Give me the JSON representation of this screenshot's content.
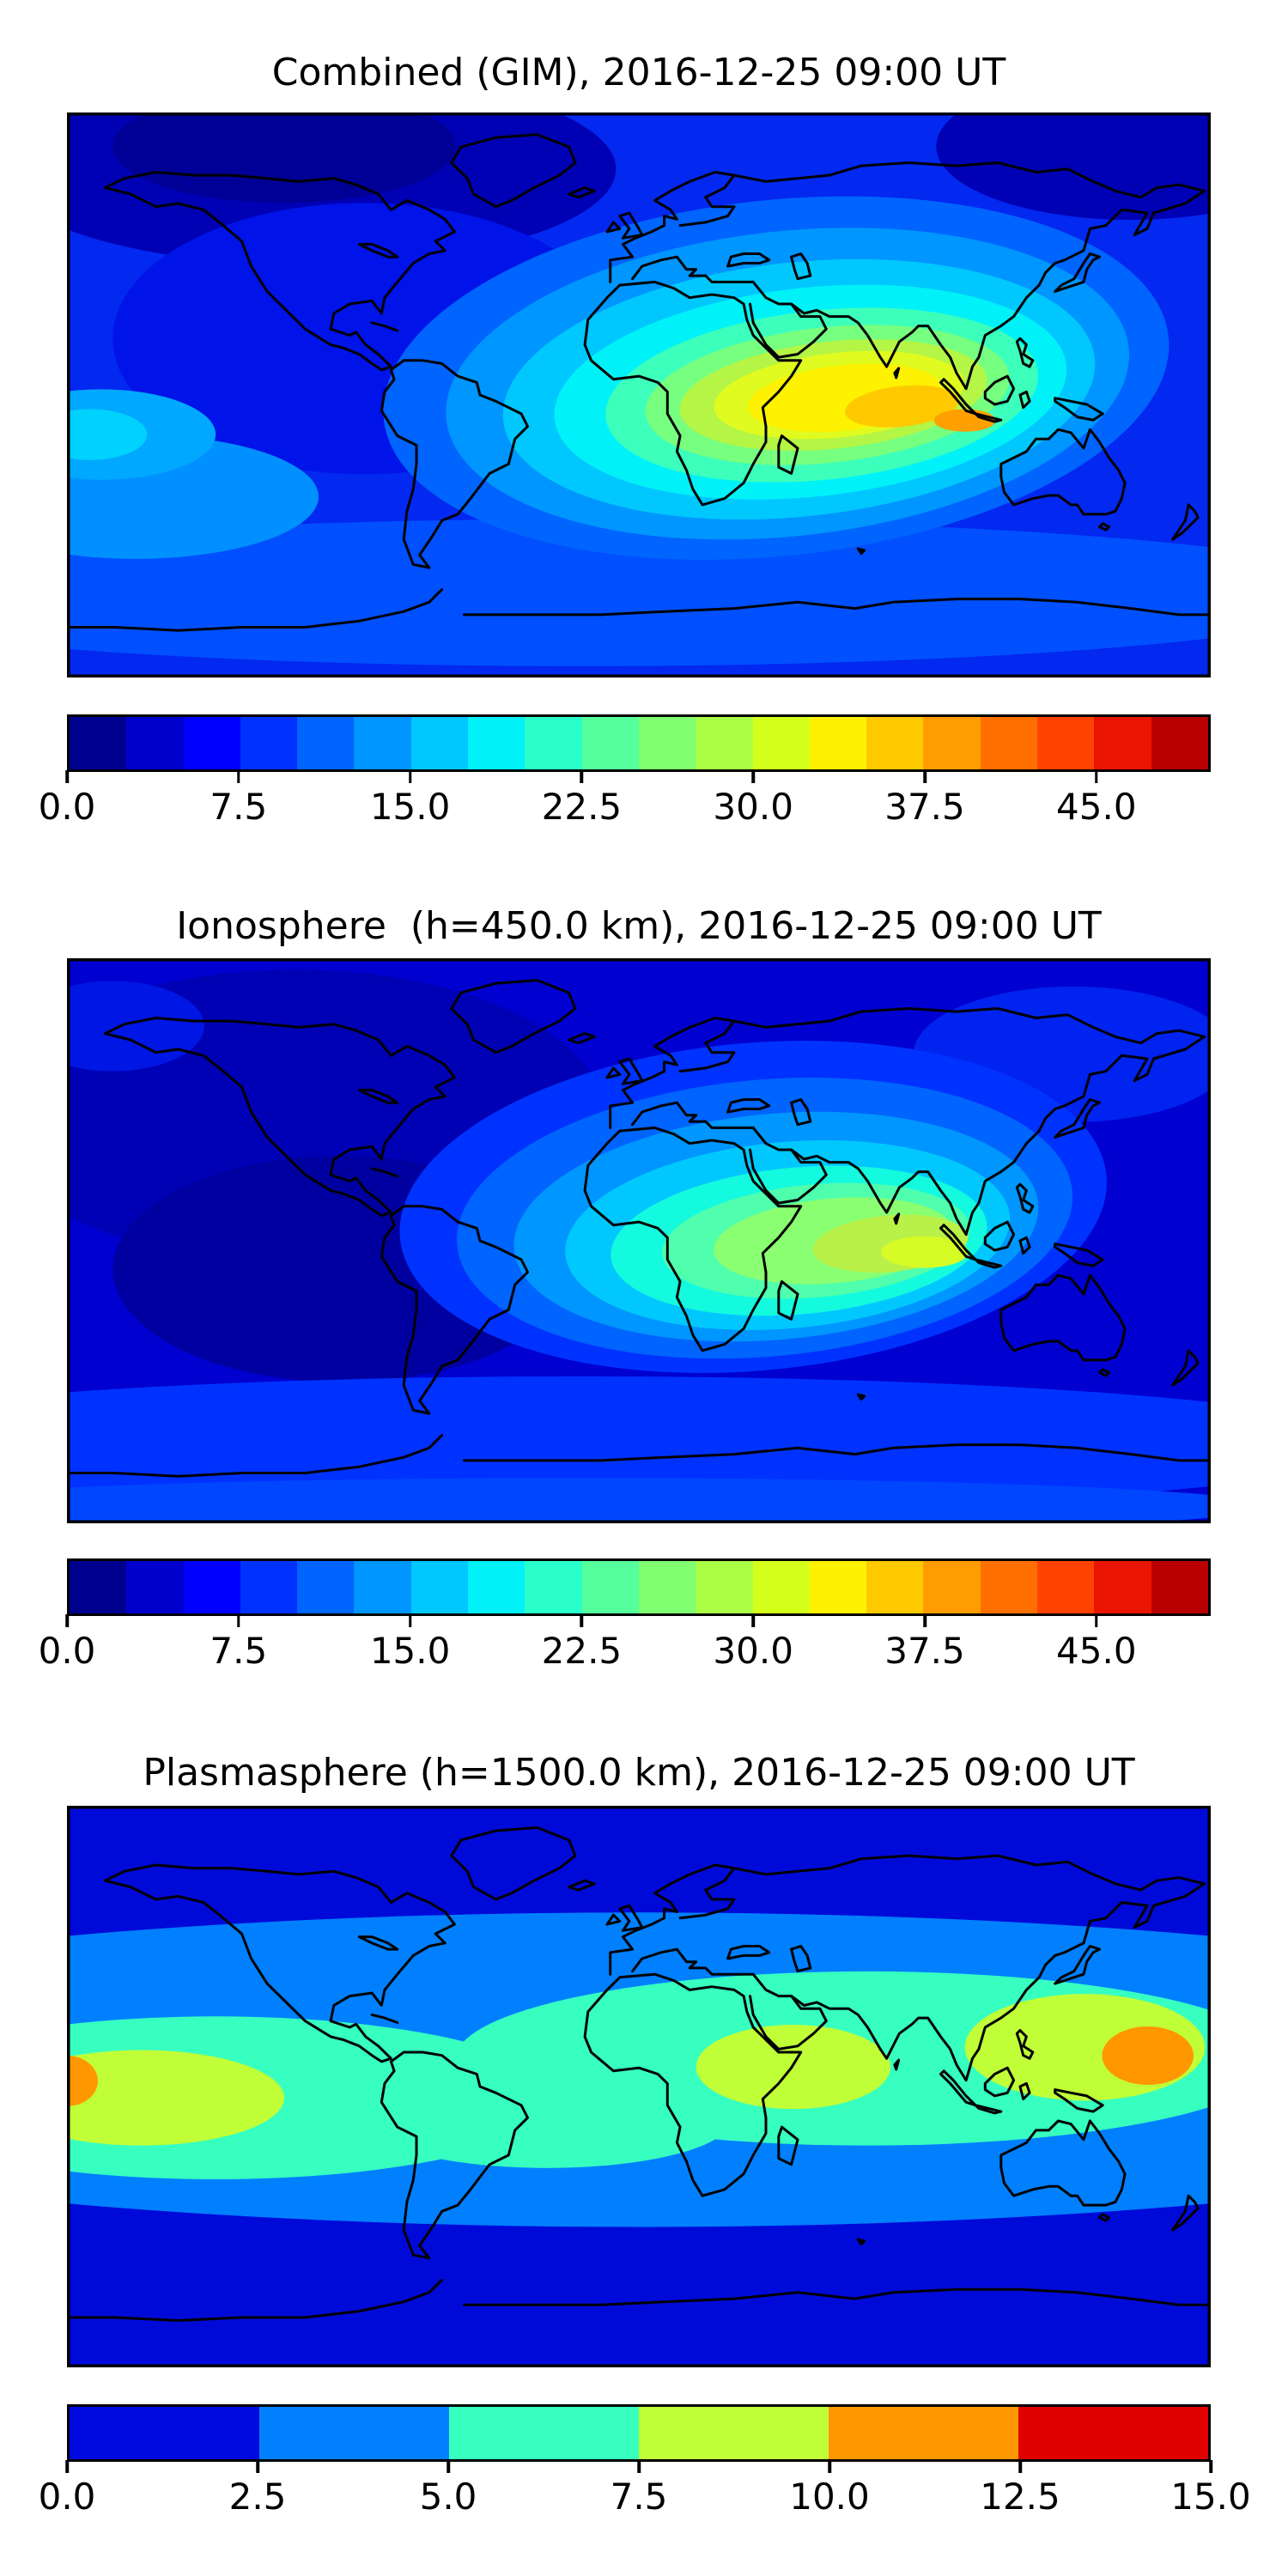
{
  "figure": {
    "background_color": "#ffffff",
    "frame_color": "#000000",
    "coastline_color": "#000000"
  },
  "chart_data": [
    {
      "type": "heatmap",
      "id": "combined",
      "title": "Combined (GIM), 2016-12-25 09:00 UT",
      "layer": "Combined (GIM)",
      "datetime": "2016-12-25 09:00 UT",
      "projection": "equirectangular world map, lon -180..180, lat -90..90, no axis tick labels",
      "grid": "off",
      "colorbar": {
        "orientation": "horizontal",
        "min": 0,
        "max": 50,
        "n_segments": 20,
        "tick_values": [
          0,
          7.5,
          15,
          22.5,
          30,
          37.5,
          45
        ],
        "tick_labels": [
          "0.0",
          "7.5",
          "15.0",
          "22.5",
          "30.0",
          "37.5",
          "45.0"
        ],
        "segment_colors": [
          "#00008f",
          "#0000cd",
          "#0000ff",
          "#0032ff",
          "#0064ff",
          "#0096ff",
          "#00c8ff",
          "#00f2f8",
          "#2affc9",
          "#55ff9b",
          "#80ff70",
          "#aaff46",
          "#d4ff1b",
          "#fff200",
          "#ffc900",
          "#ff9c00",
          "#ff6f00",
          "#ff4200",
          "#ea1500",
          "#b80000"
        ]
      },
      "field_summary": {
        "peak_value_approx": 35,
        "peak_location": {
          "lon_deg": 103,
          "lat_deg": -8
        },
        "secondary_high": "yellow lobe (~30) over central/east Africa around lon 25E lat -5",
        "low_value_approx": 2.5,
        "low_regions": "northern high latitudes over Canada/Greenland and NE Siberia",
        "description": "equatorial ionization anomaly centered over Indian Ocean / Maritime Continent, cyan mid-latitude band in southern Pacific"
      },
      "field_background": "#0328f0",
      "field_blobs": [
        {
          "cx": 0.21,
          "cy": 0.1,
          "rx": 0.27,
          "ry": 0.17,
          "color": "#0000b4",
          "level_approx": 5
        },
        {
          "cx": 0.19,
          "cy": 0.06,
          "rx": 0.15,
          "ry": 0.1,
          "color": "#000096",
          "level_approx": 2.5
        },
        {
          "cx": 0.93,
          "cy": 0.06,
          "rx": 0.17,
          "ry": 0.13,
          "color": "#0000b4",
          "level_approx": 5
        },
        {
          "cx": 0.26,
          "cy": 0.4,
          "rx": 0.22,
          "ry": 0.24,
          "color": "#0013e8",
          "level_approx": 6
        },
        {
          "cx": 0.45,
          "cy": 0.85,
          "rx": 0.7,
          "ry": 0.13,
          "color": "#0050ff",
          "level_approx": 10
        },
        {
          "cx": 0.06,
          "cy": 0.68,
          "rx": 0.16,
          "ry": 0.11,
          "color": "#0090ff",
          "level_approx": 12.5
        },
        {
          "cx": 0.03,
          "cy": 0.57,
          "rx": 0.1,
          "ry": 0.08,
          "color": "#00a8ff",
          "level_approx": 14
        },
        {
          "cx": 0.02,
          "cy": 0.57,
          "rx": 0.05,
          "ry": 0.045,
          "color": "#00d2ff",
          "level_approx": 16
        },
        {
          "cx": 0.62,
          "cy": 0.47,
          "rx": 0.345,
          "ry": 0.315,
          "rot": -6,
          "color": "#0064ff",
          "level_approx": 11
        },
        {
          "cx": 0.63,
          "cy": 0.48,
          "rx": 0.3,
          "ry": 0.27,
          "rot": -6,
          "color": "#0096ff",
          "level_approx": 13
        },
        {
          "cx": 0.64,
          "cy": 0.49,
          "rx": 0.26,
          "ry": 0.225,
          "rot": -6,
          "color": "#00c8ff",
          "level_approx": 16
        },
        {
          "cx": 0.65,
          "cy": 0.495,
          "rx": 0.225,
          "ry": 0.185,
          "rot": -6,
          "color": "#00f2f8",
          "level_approx": 18.5
        },
        {
          "cx": 0.66,
          "cy": 0.5,
          "rx": 0.19,
          "ry": 0.15,
          "rot": -6,
          "color": "#3cffbb",
          "level_approx": 21
        },
        {
          "cx": 0.665,
          "cy": 0.5,
          "rx": 0.16,
          "ry": 0.12,
          "rot": -6,
          "color": "#77ff7f",
          "level_approx": 23.5
        },
        {
          "cx": 0.67,
          "cy": 0.5,
          "rx": 0.135,
          "ry": 0.095,
          "rot": -6,
          "color": "#b4f545",
          "level_approx": 26
        },
        {
          "cx": 0.675,
          "cy": 0.5,
          "rx": 0.11,
          "ry": 0.075,
          "rot": -6,
          "color": "#e0fb20",
          "level_approx": 28.5
        },
        {
          "cx": 0.68,
          "cy": 0.505,
          "rx": 0.085,
          "ry": 0.058,
          "rot": -6,
          "color": "#fff200",
          "level_approx": 31
        },
        {
          "cx": 0.73,
          "cy": 0.52,
          "rx": 0.05,
          "ry": 0.036,
          "rot": -6,
          "color": "#ffc900",
          "level_approx": 33.5
        },
        {
          "cx": 0.785,
          "cy": 0.545,
          "rx": 0.027,
          "ry": 0.02,
          "color": "#ffa000",
          "level_approx": 35
        }
      ]
    },
    {
      "type": "heatmap",
      "id": "ionosphere",
      "title": "Ionosphere  (h=450.0 km), 2016-12-25 09:00 UT",
      "layer": "Ionosphere (h=450.0 km)",
      "datetime": "2016-12-25 09:00 UT",
      "projection": "equirectangular world map, lon -180..180, lat -90..90, no axis tick labels",
      "grid": "off",
      "colorbar": {
        "orientation": "horizontal",
        "min": 0,
        "max": 50,
        "n_segments": 20,
        "tick_values": [
          0,
          7.5,
          15,
          22.5,
          30,
          37.5,
          45
        ],
        "tick_labels": [
          "0.0",
          "7.5",
          "15.0",
          "22.5",
          "30.0",
          "37.5",
          "45.0"
        ],
        "segment_colors": [
          "#00008f",
          "#0000cd",
          "#0000ff",
          "#0032ff",
          "#0064ff",
          "#0096ff",
          "#00c8ff",
          "#00f2f8",
          "#2affc9",
          "#55ff9b",
          "#80ff70",
          "#aaff46",
          "#d4ff1b",
          "#fff200",
          "#ffc900",
          "#ff9c00",
          "#ff6f00",
          "#ff4200",
          "#ea1500",
          "#b80000"
        ]
      },
      "field_summary": {
        "peak_value_approx": 28,
        "peak_location": {
          "lon_deg": 90,
          "lat_deg": -7
        },
        "low_value_approx": 2.5,
        "low_regions": "Americas and north Atlantic (dark navy)",
        "description": "same anomaly as combined map but weaker; yellow-green core over east Indian Ocean / Sumatra"
      },
      "field_background": "#0000d0",
      "field_blobs": [
        {
          "cx": 0.2,
          "cy": 0.28,
          "rx": 0.27,
          "ry": 0.26,
          "color": "#0000b4",
          "level_approx": 4
        },
        {
          "cx": 0.24,
          "cy": 0.55,
          "rx": 0.2,
          "ry": 0.2,
          "color": "#0000a0",
          "level_approx": 3
        },
        {
          "cx": 0.04,
          "cy": 0.12,
          "rx": 0.08,
          "ry": 0.08,
          "color": "#0016e4",
          "level_approx": 6
        },
        {
          "cx": 0.88,
          "cy": 0.17,
          "rx": 0.14,
          "ry": 0.12,
          "color": "#0023f0",
          "level_approx": 7
        },
        {
          "cx": 0.45,
          "cy": 0.86,
          "rx": 0.7,
          "ry": 0.12,
          "color": "#0032ff",
          "level_approx": 8
        },
        {
          "cx": 0.45,
          "cy": 0.97,
          "rx": 0.6,
          "ry": 0.05,
          "color": "#0046ff",
          "level_approx": 9
        },
        {
          "cx": 0.6,
          "cy": 0.44,
          "rx": 0.31,
          "ry": 0.29,
          "rot": -5,
          "color": "#0032ff",
          "level_approx": 8
        },
        {
          "cx": 0.61,
          "cy": 0.46,
          "rx": 0.27,
          "ry": 0.245,
          "rot": -5,
          "color": "#0064ff",
          "level_approx": 11
        },
        {
          "cx": 0.62,
          "cy": 0.475,
          "rx": 0.23,
          "ry": 0.2,
          "rot": -5,
          "color": "#0096ff",
          "level_approx": 13.5
        },
        {
          "cx": 0.63,
          "cy": 0.49,
          "rx": 0.195,
          "ry": 0.165,
          "rot": -5,
          "color": "#00c8ff",
          "level_approx": 16
        },
        {
          "cx": 0.64,
          "cy": 0.5,
          "rx": 0.165,
          "ry": 0.13,
          "rot": -5,
          "color": "#14fade",
          "level_approx": 18.5
        },
        {
          "cx": 0.655,
          "cy": 0.5,
          "rx": 0.135,
          "ry": 0.1,
          "rot": -5,
          "color": "#4fffad",
          "level_approx": 21
        },
        {
          "cx": 0.67,
          "cy": 0.5,
          "rx": 0.105,
          "ry": 0.075,
          "rot": -5,
          "color": "#8aff71",
          "level_approx": 23.5
        },
        {
          "cx": 0.72,
          "cy": 0.505,
          "rx": 0.068,
          "ry": 0.05,
          "rot": -5,
          "color": "#b9f148",
          "level_approx": 26
        },
        {
          "cx": 0.75,
          "cy": 0.52,
          "rx": 0.038,
          "ry": 0.028,
          "color": "#d6fb25",
          "level_approx": 28
        }
      ]
    },
    {
      "type": "heatmap",
      "id": "plasmasphere",
      "title": "Plasmasphere (h=1500.0 km), 2016-12-25 09:00 UT",
      "layer": "Plasmasphere (h=1500.0 km)",
      "datetime": "2016-12-25 09:00 UT",
      "projection": "equirectangular world map, lon -180..180, lat -90..90, no axis tick labels",
      "grid": "off",
      "colorbar": {
        "orientation": "horizontal",
        "min": 0,
        "max": 15,
        "n_segments": 6,
        "tick_values": [
          0,
          2.5,
          5,
          7.5,
          10,
          12.5,
          15
        ],
        "tick_labels": [
          "0.0",
          "2.5",
          "5.0",
          "7.5",
          "10.0",
          "12.5",
          "15.0"
        ],
        "segment_colors": [
          "#0009e0",
          "#0080ff",
          "#37ffc0",
          "#c0ff37",
          "#ff9700",
          "#e00000"
        ]
      },
      "field_summary": {
        "peak_value_approx": 12,
        "peak_locations": [
          {
            "lon_deg": -178,
            "lat_deg": -1
          },
          {
            "lon_deg": 160,
            "lat_deg": 10
          }
        ],
        "low_value_approx": 1,
        "low_regions": "high latitudes north and south (dark blue)",
        "description": "broad equatorial belt: light-blue band, turquoise band, yellow-green blobs over east Pacific, Africa and west Pacific, small orange maxima at left edge and near lon 160E"
      },
      "field_background": "#000ad8",
      "field_blobs": [
        {
          "cx": 0.5,
          "cy": 0.47,
          "rx": 0.95,
          "ry": 0.28,
          "color": "#0080ff",
          "level_approx": 3.5
        },
        {
          "cx": 0.13,
          "cy": 0.52,
          "rx": 0.3,
          "ry": 0.145,
          "color": "#37ffc0",
          "level_approx": 6
        },
        {
          "cx": 0.7,
          "cy": 0.45,
          "rx": 0.36,
          "ry": 0.155,
          "color": "#37ffc0",
          "level_approx": 6
        },
        {
          "cx": 0.42,
          "cy": 0.56,
          "rx": 0.16,
          "ry": 0.085,
          "color": "#37ffc0",
          "level_approx": 6
        },
        {
          "cx": 0.065,
          "cy": 0.52,
          "rx": 0.125,
          "ry": 0.085,
          "color": "#c0ff37",
          "level_approx": 8.5
        },
        {
          "cx": 0.635,
          "cy": 0.465,
          "rx": 0.085,
          "ry": 0.075,
          "color": "#c0ff37",
          "level_approx": 8.5
        },
        {
          "cx": 0.89,
          "cy": 0.43,
          "rx": 0.105,
          "ry": 0.095,
          "color": "#c0ff37",
          "level_approx": 8.5
        },
        {
          "cx": 0.0,
          "cy": 0.49,
          "rx": 0.027,
          "ry": 0.045,
          "color": "#ff9700",
          "level_approx": 11.5
        },
        {
          "cx": 0.945,
          "cy": 0.445,
          "rx": 0.04,
          "ry": 0.052,
          "color": "#ff9700",
          "level_approx": 11.5
        }
      ]
    }
  ]
}
